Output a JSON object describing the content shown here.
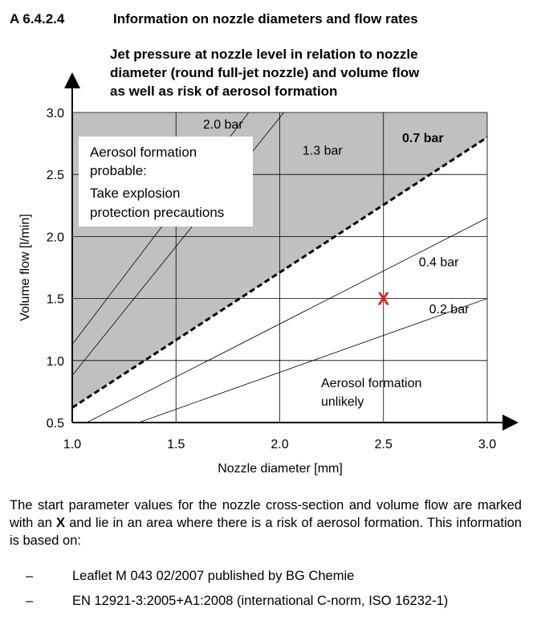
{
  "section": {
    "id": "A 6.4.2.4",
    "title": "Information on nozzle diameters and flow rates"
  },
  "chart_data": {
    "type": "line",
    "title": [
      "Jet pressure at nozzle level in relation to nozzle",
      "diameter (round full-jet nozzle) and volume flow",
      "as well as risk of aerosol formation"
    ],
    "xlabel": "Nozzle diameter [mm]",
    "ylabel": "Volume flow [l/min]",
    "xlim": [
      1.0,
      3.0
    ],
    "ylim": [
      0.5,
      3.0
    ],
    "x_ticks": [
      "1.0",
      "1.5",
      "2.0",
      "2.5",
      "3.0"
    ],
    "y_ticks": [
      "0.5",
      "1.0",
      "1.5",
      "2.0",
      "2.5",
      "3.0"
    ],
    "grid": true,
    "series": [
      {
        "name": "2.0 bar",
        "style": "thin",
        "points": [
          [
            1.0,
            1.13
          ],
          [
            1.85,
            3.0
          ]
        ]
      },
      {
        "name": "1.3 bar",
        "style": "thin",
        "points": [
          [
            1.0,
            0.88
          ],
          [
            2.02,
            3.0
          ]
        ]
      },
      {
        "name": "0.7 bar",
        "style": "dashed-bold",
        "points": [
          [
            1.0,
            0.62
          ],
          [
            3.0,
            2.8
          ]
        ]
      },
      {
        "name": "0.4 bar",
        "style": "thin",
        "points": [
          [
            1.07,
            0.5
          ],
          [
            3.0,
            2.15
          ]
        ]
      },
      {
        "name": "0.2 bar",
        "style": "thin",
        "points": [
          [
            1.32,
            0.5
          ],
          [
            3.0,
            1.5
          ]
        ]
      }
    ],
    "series_labels": [
      {
        "text": "2.0 bar",
        "x": 1.63,
        "y": 2.87,
        "bold": false
      },
      {
        "text": "1.3 bar",
        "x": 2.11,
        "y": 2.66,
        "bold": false
      },
      {
        "text": "0.7 bar",
        "x": 2.59,
        "y": 2.76,
        "bold": true
      },
      {
        "text": "0.4 bar",
        "x": 2.67,
        "y": 1.76,
        "bold": false
      },
      {
        "text": "0.2 bar",
        "x": 2.72,
        "y": 1.38,
        "bold": false
      }
    ],
    "marker": {
      "label": "X",
      "x": 2.5,
      "y": 1.5,
      "color": "#e02020"
    },
    "region_fill": "#c0c0c0",
    "annotations": {
      "probable": [
        "Aerosol formation",
        "probable:",
        "Take explosion",
        "protection precautions"
      ],
      "unlikely": [
        "Aerosol formation",
        "unlikely"
      ]
    }
  },
  "body": {
    "paragraph_parts": [
      "The start parameter values for the nozzle cross-section and volume flow are marked with an ",
      "X",
      " and lie in an area where there is a risk of aerosol formation. This information is based on:"
    ],
    "references": [
      {
        "dash": "–",
        "text": "Leaflet M 043 02/2007 published by BG Chemie"
      },
      {
        "dash": "–",
        "text": "EN 12921-3:2005+A1:2008 (international C-norm, ISO 16232-1)"
      }
    ]
  }
}
